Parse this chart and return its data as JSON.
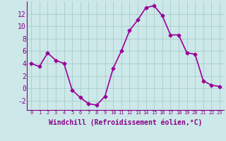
{
  "x": [
    0,
    1,
    2,
    3,
    4,
    5,
    6,
    7,
    8,
    9,
    10,
    11,
    12,
    13,
    14,
    15,
    16,
    17,
    18,
    19,
    20,
    21,
    22,
    23
  ],
  "y": [
    4.0,
    3.5,
    5.7,
    4.5,
    4.0,
    -0.3,
    -1.5,
    -2.5,
    -2.7,
    -1.3,
    3.2,
    6.0,
    9.3,
    11.0,
    13.0,
    13.3,
    11.7,
    8.6,
    8.6,
    5.7,
    5.5,
    1.2,
    0.5,
    0.3
  ],
  "line_color": "#990099",
  "marker": "D",
  "marker_size": 2.5,
  "bg_color": "#cce8e8",
  "grid_color": "#aacccc",
  "xlabel": "Windchill (Refroidissement éolien,°C)",
  "xlabel_fontsize": 7,
  "ytick_fontsize": 7,
  "xtick_fontsize": 5,
  "ylim": [
    -3.5,
    14.0
  ],
  "yticks": [
    -2,
    0,
    2,
    4,
    6,
    8,
    10,
    12
  ],
  "xticks": [
    0,
    1,
    2,
    3,
    4,
    5,
    6,
    7,
    8,
    9,
    10,
    11,
    12,
    13,
    14,
    15,
    16,
    17,
    18,
    19,
    20,
    21,
    22,
    23
  ],
  "tick_color": "#880088",
  "line_width": 1.2
}
